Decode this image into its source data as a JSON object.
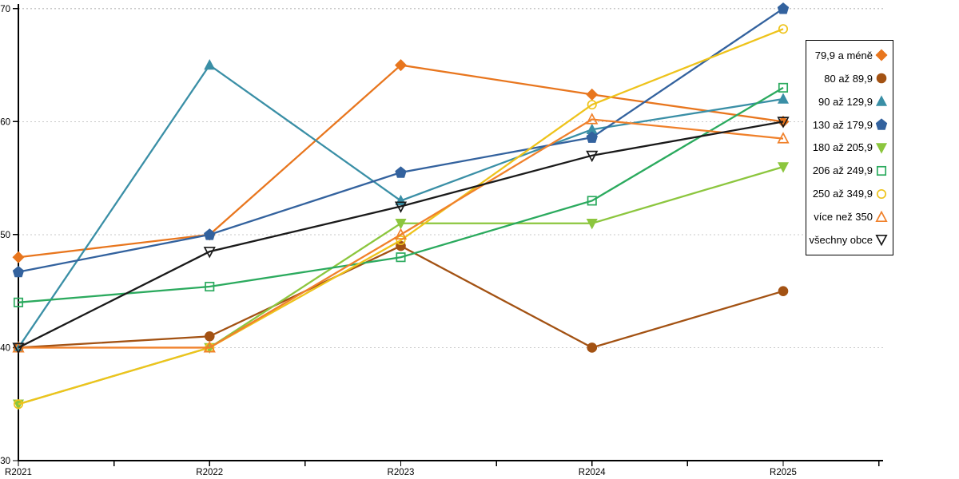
{
  "chart_data": {
    "type": "line",
    "title": "",
    "xlabel": "",
    "ylabel": "",
    "categories": [
      "R2021",
      "R2022",
      "R2023",
      "R2024",
      "R2025"
    ],
    "ylim": [
      30,
      70
    ],
    "yticks": [
      30,
      40,
      50,
      60,
      70
    ],
    "grid": "horizontal-dotted",
    "gridline_color": "#c9c9c9",
    "axis_color": "#000000",
    "legend_position": "right",
    "series": [
      {
        "name": "79,9 a méně",
        "marker": "diamond-filled",
        "color": "#e8761e",
        "values": [
          48,
          50,
          65,
          62.4,
          60
        ]
      },
      {
        "name": "80 až 89,9",
        "marker": "circle-filled",
        "color": "#a35213",
        "values": [
          40,
          41,
          49,
          40,
          45
        ]
      },
      {
        "name": "90 až 129,9",
        "marker": "triangle-up-filled",
        "color": "#3a8fa6",
        "values": [
          40,
          65,
          53,
          59.3,
          62
        ]
      },
      {
        "name": "130 až 179,9",
        "marker": "pentagon-filled",
        "color": "#33629e",
        "values": [
          46.7,
          50,
          55.5,
          58.6,
          70
        ]
      },
      {
        "name": "180 až 205,9",
        "marker": "triangle-down-filled",
        "color": "#8cc63e",
        "values": [
          35,
          40,
          51,
          51,
          56
        ]
      },
      {
        "name": "206 až 249,9",
        "marker": "square-open",
        "color": "#2baa5e",
        "values": [
          44,
          45.4,
          48,
          53,
          63
        ]
      },
      {
        "name": "250 až 349,9",
        "marker": "circle-open",
        "color": "#eec31b",
        "values": [
          35,
          40,
          49.5,
          61.5,
          68.2
        ]
      },
      {
        "name": "více než 350",
        "marker": "triangle-up-open",
        "color": "#f0812b",
        "values": [
          40,
          40,
          50,
          60.2,
          58.5
        ]
      },
      {
        "name": "všechny obce",
        "marker": "triangle-down-open",
        "color": "#1a1a1a",
        "values": [
          40,
          48.5,
          52.5,
          57,
          60
        ]
      }
    ]
  }
}
